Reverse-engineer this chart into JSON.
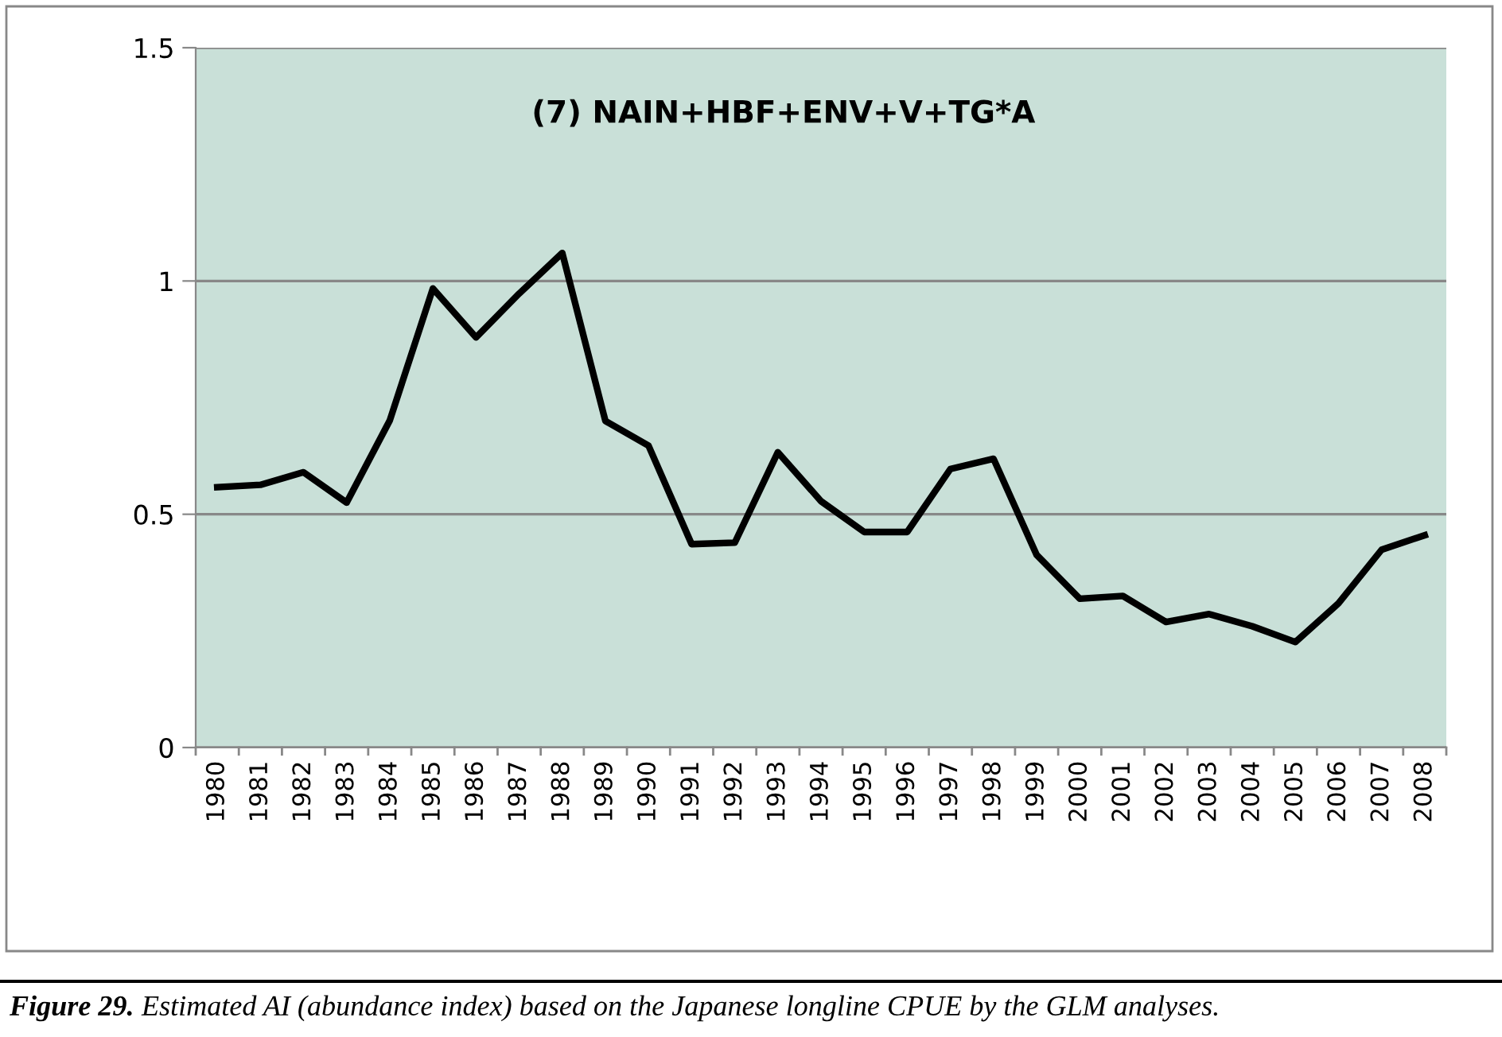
{
  "chart_data": {
    "type": "line",
    "title": "(7) NAIN+HBF+ENV+V+TG*A",
    "categories": [
      "1980",
      "1981",
      "1982",
      "1983",
      "1984",
      "1985",
      "1986",
      "1987",
      "1988",
      "1989",
      "1990",
      "1991",
      "1992",
      "1993",
      "1994",
      "1995",
      "1996",
      "1997",
      "1998",
      "1999",
      "2000",
      "2001",
      "2002",
      "2003",
      "2004",
      "2005",
      "2006",
      "2007",
      "2008"
    ],
    "series": [
      {
        "color": "#000000",
        "values": [
          0.558,
          0.563,
          0.59,
          0.525,
          0.701,
          0.984,
          0.879,
          0.973,
          1.06,
          0.7,
          0.647,
          0.436,
          0.439,
          0.633,
          0.528,
          0.462,
          0.462,
          0.597,
          0.619,
          0.413,
          0.319,
          0.325,
          0.269,
          0.286,
          0.26,
          0.226,
          0.309,
          0.424,
          0.455
        ]
      }
    ],
    "ylim": [
      0,
      1.5
    ],
    "yticks": [
      0,
      0.5,
      1,
      1.5
    ],
    "grid": "y",
    "marker": "none",
    "line_style": "solid",
    "annotations": [
      "Figure 29.",
      "Estimated AI (abundance index) based on the Japanese longline CPUE by the GLM analyses."
    ]
  }
}
